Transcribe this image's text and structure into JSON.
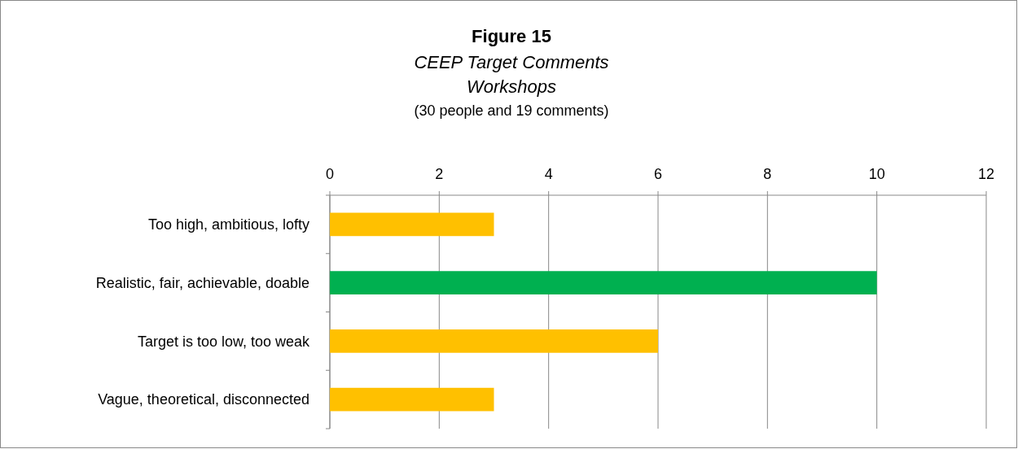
{
  "chart_data": {
    "type": "bar",
    "orientation": "horizontal",
    "title": "Figure 15",
    "subtitle": "CEEP Target Comments\nWorkshops",
    "annotations": [
      "(30 people and 19 comments)"
    ],
    "categories": [
      "Too high, ambitious, lofty",
      "Realistic, fair, achievable, doable",
      "Target is too low, too weak",
      "Vague, theoretical, disconnected"
    ],
    "values": [
      3,
      10,
      6,
      3
    ],
    "colors": [
      "#ffc000",
      "#00b050",
      "#ffc000",
      "#ffc000"
    ],
    "xlim": [
      0,
      12
    ],
    "xticks": [
      0,
      2,
      4,
      6,
      8,
      10,
      12
    ],
    "grid": "x"
  }
}
